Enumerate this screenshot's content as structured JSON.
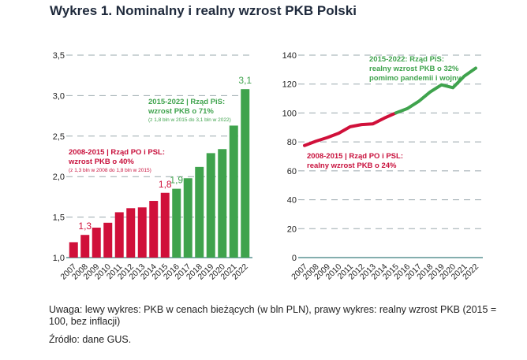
{
  "title": "Wykres 1. Nominalny i realny wzrost PKB Polski",
  "colors": {
    "po_psl": "#d0103a",
    "pis": "#3fa34d",
    "grid": "#9aa8ad",
    "axis": "#3a7d7e"
  },
  "chart_data": [
    {
      "type": "bar",
      "categories": [
        "2007",
        "2008",
        "2009",
        "2010",
        "2011",
        "2012",
        "2013",
        "2014",
        "2015",
        "2016",
        "2017",
        "2018",
        "2019",
        "2020",
        "2021",
        "2022"
      ],
      "values": [
        1.19,
        1.28,
        1.37,
        1.43,
        1.56,
        1.61,
        1.62,
        1.7,
        1.8,
        1.85,
        1.98,
        2.12,
        2.29,
        2.34,
        2.63,
        3.08
      ],
      "ylim": [
        1.0,
        3.5
      ],
      "yticks": [
        "1,0",
        "1,5",
        "2,0",
        "2,5",
        "3,0",
        "3,5"
      ],
      "ytick_values": [
        1.0,
        1.5,
        2.0,
        2.5,
        3.0,
        3.5
      ],
      "grid": true,
      "data_labels": [
        {
          "category": "2008",
          "text": "1,3"
        },
        {
          "category": "2015",
          "text": "1,8"
        },
        {
          "category": "2016",
          "text": "1,9"
        },
        {
          "category": "2022",
          "text": "3,1"
        }
      ],
      "annotations": {
        "po_psl": {
          "line1": "2008-2015 | Rząd PO i PSL:",
          "line2": "wzrost PKB o 40%",
          "line3": "(z 1,3 bln w 2008 do 1,8 bln w 2015)"
        },
        "pis": {
          "line1": "2015-2022 | Rząd PiS:",
          "line2": "wzrost PKB o 71%",
          "line3": "(z 1,8 bln w 2015 do 3,1 bln w 2022)"
        }
      }
    },
    {
      "type": "line",
      "categories": [
        "2007",
        "2008",
        "2009",
        "2010",
        "2011",
        "2012",
        "2013",
        "2014",
        "2015",
        "2016",
        "2017",
        "2018",
        "2019",
        "2020",
        "2021",
        "2022"
      ],
      "values": [
        77.5,
        80.5,
        83,
        86,
        90.5,
        92,
        92.5,
        96.5,
        100,
        103,
        108,
        114.5,
        119.5,
        117.5,
        125.5,
        131
      ],
      "ylim": [
        0,
        140
      ],
      "yticks": [
        "0",
        "20",
        "40",
        "60",
        "80",
        "100",
        "120",
        "140"
      ],
      "ytick_values": [
        0,
        20,
        40,
        60,
        80,
        100,
        120,
        140
      ],
      "grid": true,
      "annotations": {
        "po_psl": {
          "line1": "2008-2015 | Rząd PO i PSL:",
          "line2": "realny wzrost PKB o 24%"
        },
        "pis": {
          "line1": "2015-2022: Rząd PiS:",
          "line2": "realny wzrost PKB o 32%",
          "line3": "pomimo pandemii i wojny"
        }
      }
    }
  ],
  "footer": {
    "note": "Uwaga: lewy wykres: PKB w cenach bieżących (w bln PLN), prawy wykres: realny wzrost PKB (2015 = 100, bez inflacji)",
    "source": "Źródło: dane GUS."
  }
}
